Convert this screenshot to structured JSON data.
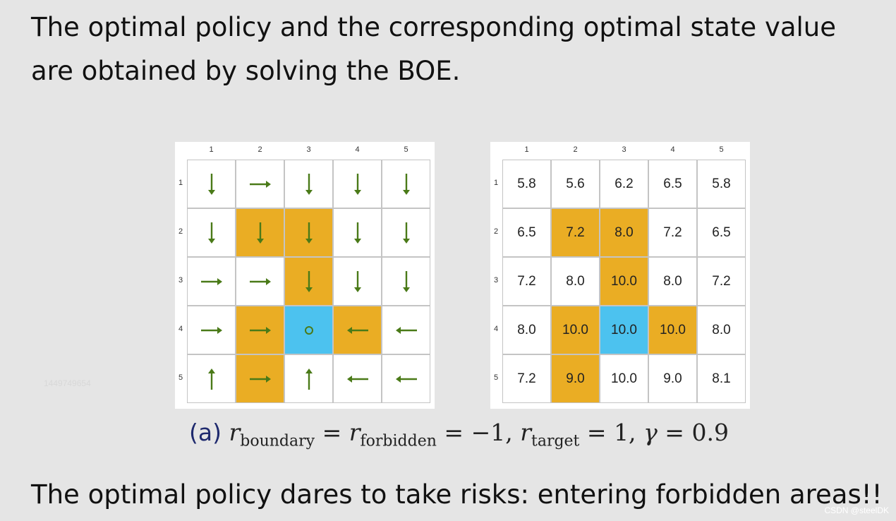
{
  "intro": "The optimal policy and the corresponding optimal state value are obtained by solving the BOE.",
  "grid": {
    "col_labels": [
      "1",
      "2",
      "3",
      "4",
      "5"
    ],
    "row_labels": [
      "1",
      "2",
      "3",
      "4",
      "5"
    ],
    "cell_types": [
      [
        "normal",
        "normal",
        "normal",
        "normal",
        "normal"
      ],
      [
        "normal",
        "forbidden",
        "forbidden",
        "normal",
        "normal"
      ],
      [
        "normal",
        "normal",
        "forbidden",
        "normal",
        "normal"
      ],
      [
        "normal",
        "forbidden",
        "target",
        "forbidden",
        "normal"
      ],
      [
        "normal",
        "forbidden",
        "normal",
        "normal",
        "normal"
      ]
    ],
    "colors": {
      "normal": "#ffffff",
      "forbidden": "#eaad24",
      "target": "#4cc2ef",
      "arrow": "#4a7a18"
    },
    "policy": [
      [
        "down",
        "right",
        "down",
        "down",
        "down"
      ],
      [
        "down",
        "down",
        "down",
        "down",
        "down"
      ],
      [
        "right",
        "right",
        "down",
        "down",
        "down"
      ],
      [
        "right",
        "right",
        "stay",
        "left",
        "left"
      ],
      [
        "up",
        "right",
        "up",
        "left",
        "left"
      ]
    ],
    "values": [
      [
        "5.8",
        "5.6",
        "6.2",
        "6.5",
        "5.8"
      ],
      [
        "6.5",
        "7.2",
        "8.0",
        "7.2",
        "6.5"
      ],
      [
        "7.2",
        "8.0",
        "10.0",
        "8.0",
        "7.2"
      ],
      [
        "8.0",
        "10.0",
        "10.0",
        "10.0",
        "8.0"
      ],
      [
        "7.2",
        "9.0",
        "10.0",
        "9.0",
        "8.1"
      ]
    ]
  },
  "caption": {
    "tag": "(a)",
    "r": "r",
    "sub_boundary": "boundary",
    "sub_forbidden": "forbidden",
    "sub_target": "target",
    "eq": "=",
    "minus_one": "−1,",
    "one": "1,",
    "gamma": "γ",
    "gamma_value": "0.9"
  },
  "conclusion": "The optimal policy dares to take risks: entering forbidden areas!!",
  "watermark": "CSDN @steelDK",
  "faint_id": "1449749654"
}
